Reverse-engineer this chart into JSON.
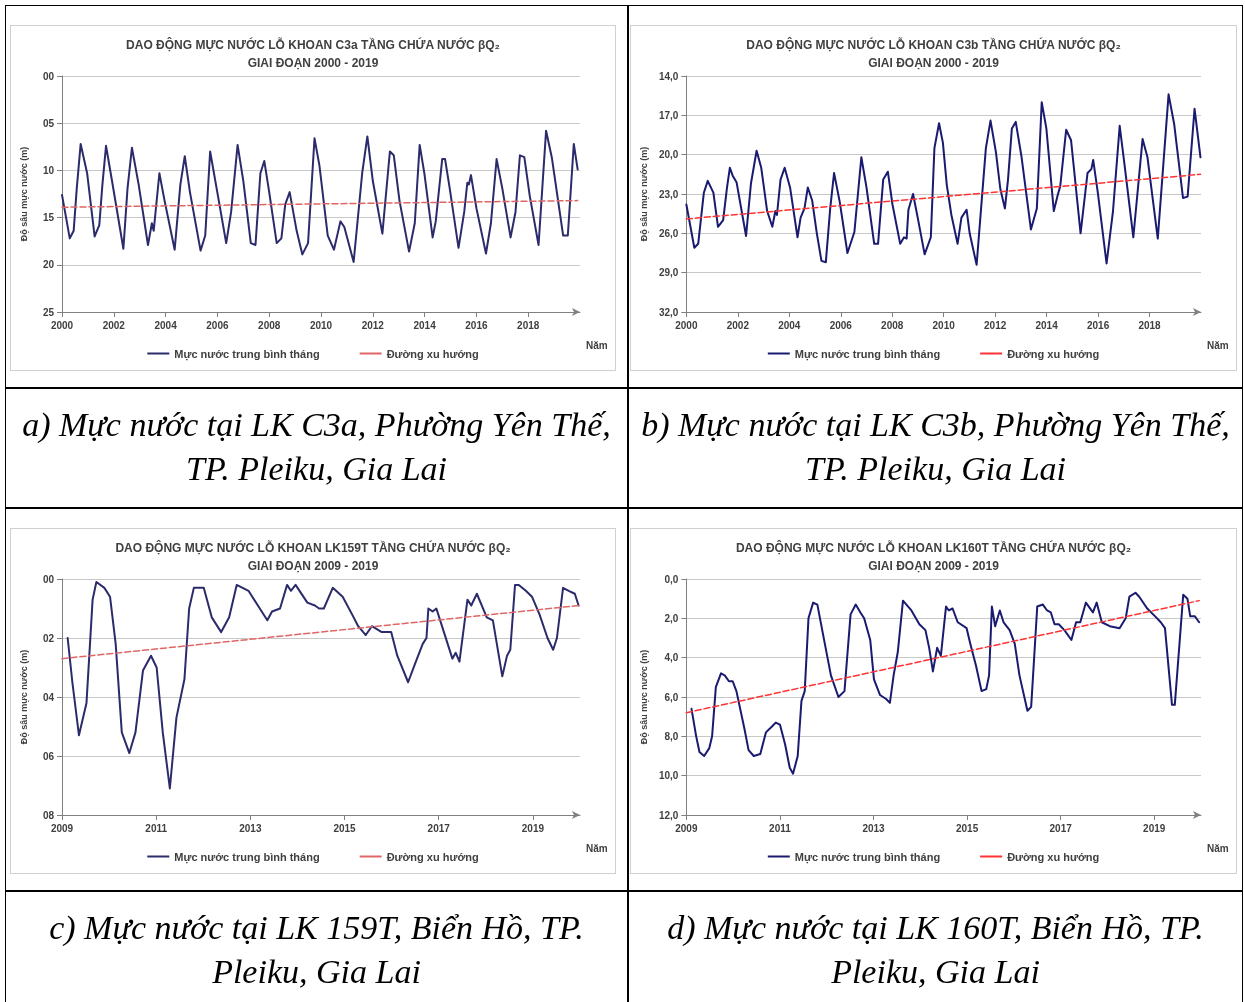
{
  "chart_data": [
    {
      "type": "line",
      "title": "DAO ĐỘNG MỰC NƯỚC LỖ KHOAN C3a TẦNG CHỨA NƯỚC βQ₂",
      "subtitle": "GIAI ĐOẠN 2000 - 2019",
      "xlabel": "Năm",
      "ylabel": "Độ sâu mực nước (m)",
      "xlim": [
        2000,
        2020
      ],
      "xticks": [
        2000,
        2002,
        2004,
        2006,
        2008,
        2010,
        2012,
        2014,
        2016,
        2018
      ],
      "ylim": [
        25,
        0
      ],
      "yticks": [
        {
          "value": 0,
          "label": "00"
        },
        {
          "value": 5,
          "label": "05"
        },
        10,
        15,
        20,
        25
      ],
      "grid": "y",
      "legend": "bottom",
      "marker": "none",
      "annotations": [
        "a) Mực nước tại LK C3a, Phường Yên Thế, TP. Pleiku, Gia Lai"
      ],
      "series": [
        {
          "name": "Mực nước trung bình tháng",
          "color": "#2b2b6b",
          "x": [
            2000.0,
            2000.3,
            2000.45,
            2000.57,
            2000.72,
            2000.97,
            2001.26,
            2001.44,
            2001.56,
            2001.7,
            2001.93,
            2002.37,
            2002.53,
            2002.7,
            2002.96,
            2003.32,
            2003.47,
            2003.54,
            2003.76,
            2003.96,
            2004.35,
            2004.57,
            2004.74,
            2004.94,
            2005.35,
            2005.53,
            2005.72,
            2005.97,
            2006.34,
            2006.53,
            2006.78,
            2007.0,
            2007.29,
            2007.47,
            2007.66,
            2007.81,
            2008.0,
            2008.29,
            2008.47,
            2008.62,
            2008.79,
            2009.06,
            2009.28,
            2009.5,
            2009.75,
            2009.94,
            2010.26,
            2010.5,
            2010.75,
            2010.9,
            2011.26,
            2011.59,
            2011.79,
            2012.0,
            2012.37,
            2012.66,
            2012.81,
            2013.03,
            2013.4,
            2013.62,
            2013.81,
            2013.99,
            2014.31,
            2014.43,
            2014.68,
            2014.79,
            2014.97,
            2015.31,
            2015.53,
            2015.65,
            2015.71,
            2015.79,
            2016.0,
            2016.37,
            2016.56,
            2016.78,
            2017.0,
            2017.32,
            2017.51,
            2017.68,
            2017.85,
            2018.06,
            2018.4,
            2018.69,
            2018.91,
            2019.35,
            2019.53,
            2019.76,
            2019.91
          ],
          "values": [
            12.6,
            17.2,
            16.4,
            11.9,
            7.2,
            10.3,
            17.0,
            15.8,
            11.5,
            7.4,
            11.1,
            18.3,
            11.9,
            7.6,
            11.5,
            17.9,
            15.6,
            16.4,
            10.3,
            13.2,
            18.4,
            11.5,
            8.5,
            12.3,
            18.5,
            16.9,
            8.0,
            11.9,
            17.7,
            14.4,
            7.3,
            11.1,
            17.7,
            17.9,
            10.3,
            9.0,
            12.3,
            17.7,
            17.2,
            13.6,
            12.3,
            16.4,
            18.9,
            17.7,
            6.6,
            9.5,
            16.9,
            18.4,
            15.4,
            16.0,
            19.7,
            10.3,
            6.4,
            11.1,
            16.7,
            8.0,
            8.4,
            13.2,
            18.6,
            15.6,
            7.3,
            10.3,
            17.1,
            15.4,
            8.8,
            8.8,
            11.9,
            18.2,
            14.4,
            11.3,
            11.5,
            10.5,
            14.0,
            18.8,
            15.6,
            8.8,
            11.9,
            17.1,
            14.4,
            8.4,
            8.6,
            12.7,
            17.9,
            5.8,
            8.6,
            16.9,
            16.9,
            7.2,
            9.9
          ]
        },
        {
          "name": "Đường xu hướng",
          "color": "#e06666",
          "line_style": "dashed",
          "x": [
            2000.0,
            2019.91
          ],
          "values": [
            13.9,
            13.2
          ]
        }
      ]
    },
    {
      "type": "line",
      "title": "DAO ĐỘNG MỰC NƯỚC LỖ KHOAN C3b TẦNG CHỨA NƯỚC βQ₂",
      "subtitle": "GIAI ĐOẠN 2000 - 2019",
      "xlabel": "Năm",
      "ylabel": "Độ sâu mực nước (m)",
      "xlim": [
        2000,
        2020
      ],
      "xticks": [
        2000,
        2002,
        2004,
        2006,
        2008,
        2010,
        2012,
        2014,
        2016,
        2018
      ],
      "ylim": [
        32,
        14
      ],
      "yticks": [
        {
          "value": 14,
          "label": "14,0"
        },
        {
          "value": 17,
          "label": "17,0"
        },
        {
          "value": 20,
          "label": "20,0"
        },
        {
          "value": 23,
          "label": "23,0"
        },
        {
          "value": 26,
          "label": "26,0"
        },
        {
          "value": 29,
          "label": "29,0"
        },
        {
          "value": 32,
          "label": "32,0"
        }
      ],
      "grid": "y",
      "legend": "bottom",
      "marker": "none",
      "annotations": [
        "b) Mực nước tại LK C3b, Phường Yên Thế, TP. Pleiku, Gia Lai"
      ],
      "series": [
        {
          "name": "Mực nước trung bình tháng",
          "color": "#1a1a70",
          "x": [
            2000.0,
            2000.31,
            2000.46,
            2000.68,
            2000.83,
            2001.05,
            2001.23,
            2001.43,
            2001.58,
            2001.69,
            2001.8,
            2001.95,
            2002.32,
            2002.51,
            2002.73,
            2002.91,
            2003.14,
            2003.34,
            2003.46,
            2003.52,
            2003.66,
            2003.82,
            2004.03,
            2004.32,
            2004.44,
            2004.59,
            2004.72,
            2004.89,
            2005.07,
            2005.25,
            2005.42,
            2005.59,
            2005.74,
            2005.96,
            2006.26,
            2006.53,
            2006.8,
            2007.0,
            2007.3,
            2007.45,
            2007.65,
            2007.83,
            2008.01,
            2008.31,
            2008.46,
            2008.56,
            2008.63,
            2008.81,
            2009.0,
            2009.26,
            2009.5,
            2009.64,
            2009.82,
            2009.97,
            2010.12,
            2010.3,
            2010.54,
            2010.69,
            2010.89,
            2011.01,
            2011.28,
            2011.49,
            2011.64,
            2011.82,
            2012.03,
            2012.2,
            2012.38,
            2012.5,
            2012.65,
            2012.8,
            2013.02,
            2013.39,
            2013.62,
            2013.81,
            2013.99,
            2014.28,
            2014.43,
            2014.53,
            2014.76,
            2014.95,
            2015.32,
            2015.59,
            2015.74,
            2015.81,
            2015.99,
            2016.33,
            2016.58,
            2016.84,
            2017.03,
            2017.37,
            2017.73,
            2017.92,
            2018.32,
            2018.74,
            2018.96,
            2019.3,
            2019.48,
            2019.75,
            2019.98
          ],
          "values": [
            23.8,
            27.1,
            26.8,
            22.9,
            22.0,
            22.9,
            25.5,
            25.0,
            22.5,
            21.0,
            21.6,
            22.1,
            26.2,
            22.2,
            19.7,
            21.0,
            24.3,
            25.5,
            24.3,
            24.6,
            21.9,
            21.0,
            22.5,
            26.3,
            24.8,
            24.1,
            22.5,
            23.5,
            26.0,
            28.1,
            28.2,
            24.1,
            21.4,
            23.6,
            27.5,
            25.9,
            20.2,
            22.5,
            26.8,
            26.8,
            21.9,
            21.3,
            23.8,
            26.8,
            26.3,
            26.4,
            24.2,
            23.0,
            24.9,
            27.6,
            26.3,
            19.5,
            17.6,
            19.1,
            22.3,
            24.6,
            26.8,
            24.8,
            24.2,
            26.0,
            28.4,
            23.2,
            19.5,
            17.4,
            19.8,
            22.6,
            24.1,
            21.9,
            18.0,
            17.5,
            20.1,
            25.7,
            24.1,
            16.0,
            18.0,
            24.3,
            23.1,
            22.4,
            18.1,
            18.9,
            26.0,
            21.4,
            21.1,
            20.4,
            22.9,
            28.3,
            24.3,
            17.8,
            20.8,
            26.3,
            18.8,
            20.2,
            26.4,
            15.4,
            17.7,
            23.3,
            23.2,
            16.5,
            20.2
          ]
        },
        {
          "name": "Đường xu hướng",
          "color": "#ff3333",
          "line_style": "dashed",
          "x": [
            2000.0,
            2019.98
          ],
          "values": [
            24.9,
            21.5
          ]
        }
      ]
    },
    {
      "type": "line",
      "title": "DAO ĐỘNG MỰC NƯỚC LỖ KHOAN LK159T TẦNG CHỨA NƯỚC βQ₂",
      "subtitle": "GIAI ĐOẠN 2009 - 2019",
      "xlabel": "Năm",
      "ylabel": "Độ sâu mực nước (m)",
      "xlim": [
        2009,
        2020
      ],
      "xticks": [
        2009,
        2011,
        2013,
        2015,
        2017,
        2019
      ],
      "ylim": [
        8,
        0
      ],
      "yticks": [
        {
          "value": 0,
          "label": "00"
        },
        {
          "value": 2,
          "label": "02"
        },
        {
          "value": 4,
          "label": "04"
        },
        {
          "value": 6,
          "label": "06"
        },
        {
          "value": 8,
          "label": "08"
        }
      ],
      "grid": "y",
      "legend": "bottom",
      "marker": "none",
      "annotations": [
        "c) Mực nước tại LK 159T, Biển Hồ, TP. Pleiku, Gia Lai"
      ],
      "series": [
        {
          "name": "Mực nước trung bình tháng",
          "color": "#2b2b6b",
          "x": [
            2009.12,
            2009.22,
            2009.36,
            2009.52,
            2009.65,
            2009.73,
            2009.9,
            2010.02,
            2010.14,
            2010.27,
            2010.43,
            2010.56,
            2010.72,
            2010.89,
            2011.01,
            2011.14,
            2011.29,
            2011.43,
            2011.6,
            2011.7,
            2011.8,
            2012.01,
            2012.18,
            2012.38,
            2012.55,
            2012.71,
            2012.96,
            2013.2,
            2013.36,
            2013.46,
            2013.63,
            2013.78,
            2013.86,
            2013.96,
            2014.21,
            2014.37,
            2014.46,
            2014.56,
            2014.75,
            2014.96,
            2015.16,
            2015.29,
            2015.45,
            2015.58,
            2015.79,
            2015.99,
            2016.12,
            2016.35,
            2016.49,
            2016.66,
            2016.74,
            2016.78,
            2016.87,
            2016.95,
            2017.11,
            2017.29,
            2017.36,
            2017.44,
            2017.61,
            2017.69,
            2017.81,
            2018.02,
            2018.15,
            2018.35,
            2018.45,
            2018.52,
            2018.62,
            2018.7,
            2018.85,
            2018.98,
            2019.14,
            2019.31,
            2019.43,
            2019.51,
            2019.64,
            2019.76,
            2019.89,
            2019.97
          ],
          "values": [
            2.0,
            3.5,
            5.3,
            4.2,
            0.7,
            0.1,
            0.3,
            0.6,
            2.2,
            5.2,
            5.9,
            5.2,
            3.1,
            2.6,
            3.0,
            5.2,
            7.1,
            4.7,
            3.4,
            1.0,
            0.3,
            0.3,
            1.3,
            1.8,
            1.3,
            0.2,
            0.4,
            1.0,
            1.4,
            1.1,
            1.0,
            0.2,
            0.4,
            0.2,
            0.8,
            0.9,
            1.0,
            1.0,
            0.3,
            0.6,
            1.2,
            1.6,
            1.9,
            1.6,
            1.8,
            1.8,
            2.6,
            3.5,
            2.9,
            2.2,
            2.0,
            1.0,
            1.1,
            1.0,
            1.8,
            2.7,
            2.5,
            2.8,
            0.7,
            0.9,
            0.5,
            1.3,
            1.4,
            3.3,
            2.6,
            2.4,
            0.2,
            0.2,
            0.4,
            0.6,
            1.2,
            2.0,
            2.4,
            2.0,
            0.3,
            0.4,
            0.5,
            0.9
          ]
        },
        {
          "name": "Đường xu hướng",
          "color": "#e06666",
          "line_style": "dashed",
          "x": [
            2009.0,
            2019.97
          ],
          "values": [
            2.7,
            0.9
          ]
        }
      ]
    },
    {
      "type": "line",
      "title": "DAO ĐỘNG MỰC NƯỚC LỖ KHOAN LK160T TẦNG CHỨA NƯỚC βQ₂",
      "subtitle": "GIAI ĐOẠN 2009 - 2019",
      "xlabel": "Năm",
      "ylabel": "Độ sâu mực nước (m)",
      "xlim": [
        2009,
        2020
      ],
      "xticks": [
        2009,
        2011,
        2013,
        2015,
        2017,
        2019
      ],
      "ylim": [
        12,
        0
      ],
      "yticks": [
        {
          "value": 0,
          "label": "0,0"
        },
        {
          "value": 2,
          "label": "2,0"
        },
        {
          "value": 4,
          "label": "4,0"
        },
        {
          "value": 6,
          "label": "6,0"
        },
        {
          "value": 8,
          "label": "8,0"
        },
        {
          "value": 10,
          "label": "10,0"
        },
        {
          "value": 12,
          "label": "12,0"
        }
      ],
      "grid": "y",
      "legend": "bottom",
      "marker": "none",
      "annotations": [
        "d) Mực nước tại LK 160T, Biển Hồ, TP. Pleiku, Gia Lai"
      ],
      "series": [
        {
          "name": "Mực nước trung bình tháng",
          "color": "#1a1a70",
          "x": [
            2009.11,
            2009.21,
            2009.28,
            2009.38,
            2009.49,
            2009.55,
            2009.63,
            2009.74,
            2009.82,
            2009.91,
            2009.99,
            2010.07,
            2010.24,
            2010.33,
            2010.44,
            2010.58,
            2010.7,
            2010.83,
            2010.91,
            2011.0,
            2011.11,
            2011.21,
            2011.28,
            2011.38,
            2011.46,
            2011.53,
            2011.61,
            2011.71,
            2011.8,
            2011.96,
            2012.09,
            2012.25,
            2012.38,
            2012.51,
            2012.62,
            2012.72,
            2012.8,
            2012.93,
            2013.01,
            2013.14,
            2013.27,
            2013.35,
            2013.43,
            2013.52,
            2013.63,
            2013.74,
            2013.81,
            2013.98,
            2014.11,
            2014.19,
            2014.27,
            2014.36,
            2014.44,
            2014.55,
            2014.61,
            2014.69,
            2014.8,
            2014.99,
            2015.07,
            2015.19,
            2015.31,
            2015.41,
            2015.47,
            2015.53,
            2015.6,
            2015.7,
            2015.78,
            2015.91,
            2016.02,
            2016.12,
            2016.29,
            2016.37,
            2016.5,
            2016.62,
            2016.71,
            2016.79,
            2016.87,
            2016.96,
            2017.08,
            2017.23,
            2017.33,
            2017.42,
            2017.54,
            2017.69,
            2017.77,
            2017.88,
            2018.05,
            2018.26,
            2018.39,
            2018.47,
            2018.6,
            2018.68,
            2018.85,
            2019.02,
            2019.14,
            2019.23,
            2019.38,
            2019.44,
            2019.54,
            2019.62,
            2019.71,
            2019.77,
            2019.87,
            2019.96
          ],
          "values": [
            6.6,
            8.0,
            8.8,
            9.0,
            8.6,
            8.0,
            5.5,
            4.8,
            4.9,
            5.2,
            5.2,
            5.7,
            7.6,
            8.7,
            9.0,
            8.9,
            7.8,
            7.5,
            7.3,
            7.4,
            8.4,
            9.6,
            9.9,
            9.0,
            6.2,
            5.7,
            2.0,
            1.2,
            1.3,
            3.3,
            4.9,
            6.0,
            5.7,
            1.8,
            1.3,
            1.7,
            2.0,
            3.1,
            5.1,
            5.9,
            6.1,
            6.3,
            4.9,
            3.7,
            1.1,
            1.4,
            1.6,
            2.3,
            2.6,
            3.5,
            4.7,
            3.5,
            3.9,
            1.4,
            1.6,
            1.5,
            2.2,
            2.5,
            3.3,
            4.4,
            5.7,
            5.6,
            4.9,
            1.4,
            2.4,
            1.6,
            2.2,
            2.6,
            3.3,
            4.9,
            6.7,
            6.5,
            1.4,
            1.3,
            1.6,
            1.7,
            2.3,
            2.3,
            2.6,
            3.1,
            2.2,
            2.2,
            1.2,
            1.7,
            1.2,
            2.2,
            2.4,
            2.5,
            2.0,
            0.9,
            0.7,
            0.9,
            1.5,
            1.9,
            2.2,
            2.5,
            6.4,
            6.4,
            3.3,
            0.8,
            1.0,
            1.9,
            1.9,
            2.2
          ]
        },
        {
          "name": "Đường xu hướng",
          "color": "#ff3333",
          "line_style": "dashed",
          "x": [
            2009.0,
            2019.96
          ],
          "values": [
            6.8,
            1.1
          ]
        }
      ]
    }
  ]
}
